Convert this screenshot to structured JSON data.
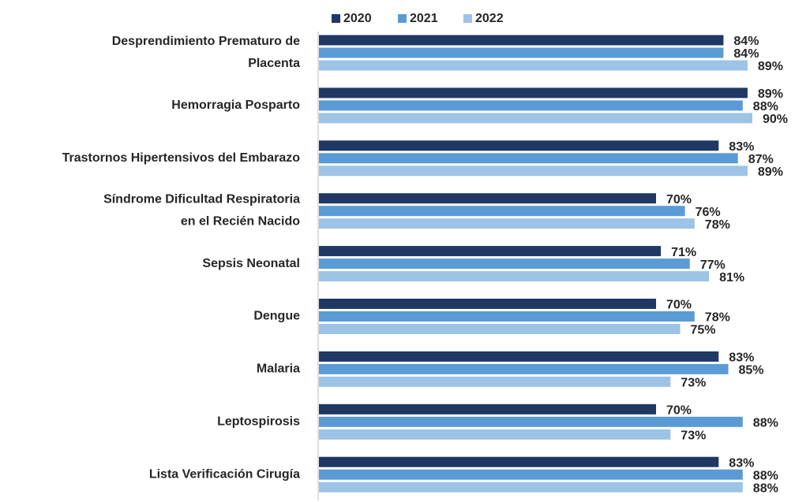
{
  "chart_data": {
    "type": "hbar",
    "categories": [
      "Desprendimiento Prematuro de\nPlacenta",
      "Hemorragia Posparto",
      "Trastornos Hipertensivos del Embarazo",
      "Síndrome Dificultad Respiratoria\nen el Recién Nacido",
      "Sepsis Neonatal",
      "Dengue",
      "Malaria",
      "Leptospirosis",
      "Lista Verificación Cirugía"
    ],
    "xlim": [
      0,
      100
    ],
    "series": [
      {
        "name": "2020",
        "color": "#1f3864",
        "values": [
          84,
          89,
          83,
          70,
          71,
          70,
          83,
          70,
          83
        ],
        "value_labels": [
          "84%",
          "89%",
          "83%",
          "70%",
          "71%",
          "70%",
          "83%",
          "70%",
          "83%"
        ]
      },
      {
        "name": "2021",
        "color": "#5b9bd5",
        "values": [
          84,
          88,
          87,
          76,
          77,
          78,
          85,
          88,
          88
        ],
        "value_labels": [
          "84%",
          "88%",
          "87%",
          "76%",
          "77%",
          "78%",
          "85%",
          "88%",
          "88%"
        ]
      },
      {
        "name": "2022",
        "color": "#9dc3e6",
        "values": [
          89,
          90,
          89,
          78,
          81,
          75,
          73,
          73,
          88
        ],
        "value_labels": [
          "89%",
          "90%",
          "89%",
          "78%",
          "81%",
          "75%",
          "73%",
          "73%",
          "88%"
        ]
      }
    ]
  }
}
